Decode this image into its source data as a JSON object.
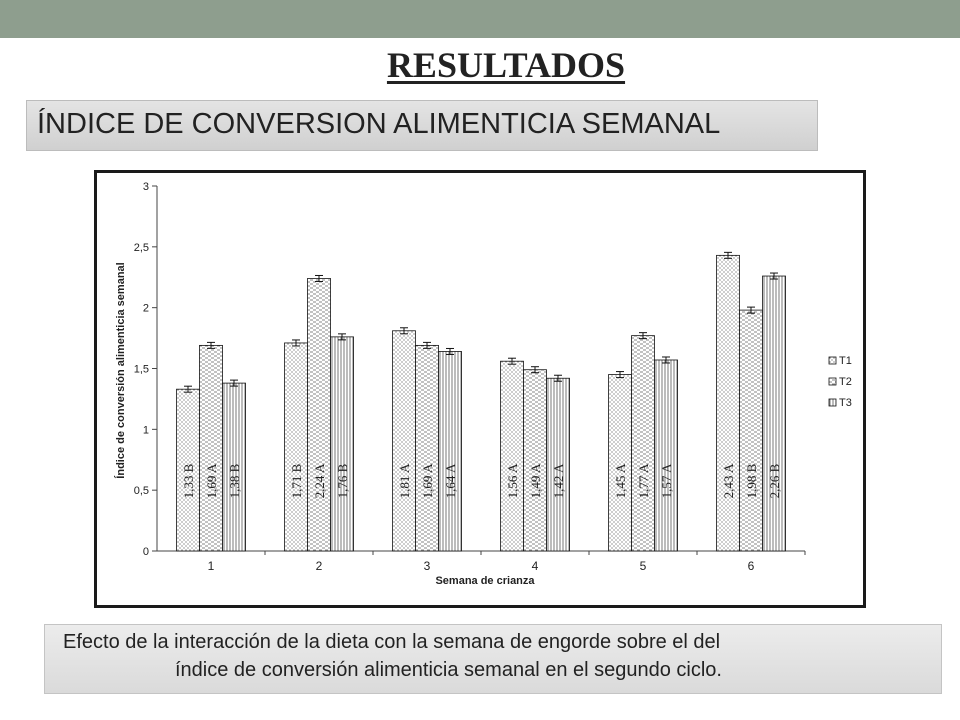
{
  "slide": {
    "title": "RESULTADOS",
    "subtitle": "ÍNDICE DE CONVERSION ALIMENTICIA SEMANAL",
    "caption_line1": "Efecto de la interacción de la dieta con la semana de engorde sobre el del",
    "caption_line2": "índice de conversión alimenticia semanal en el segundo ciclo."
  },
  "colors": {
    "top_band": "#8e9e8e",
    "frame": "#1a1a1a",
    "bar_stroke": "#111111"
  },
  "chart_data": {
    "type": "bar",
    "title": "",
    "xlabel": "Semana de crianza",
    "ylabel": "Índice de conversión alimenticia semanal",
    "ylim": [
      0,
      3
    ],
    "y_ticks": [
      "0",
      "0,5",
      "1",
      "1,5",
      "2",
      "2,5",
      "3"
    ],
    "y_tick_values": [
      0,
      0.5,
      1,
      1.5,
      2,
      2.5,
      3
    ],
    "categories": [
      "1",
      "2",
      "3",
      "4",
      "5",
      "6"
    ],
    "error_bars": true,
    "grid": false,
    "legend_position": "right",
    "series": [
      {
        "name": "T1",
        "pattern": "dots",
        "values": [
          1.33,
          1.71,
          1.81,
          1.56,
          1.45,
          2.43
        ],
        "labels": [
          "1,33 B",
          "1,71 B",
          "1,81 A",
          "1,56 A",
          "1,45 A",
          "2,43 A"
        ]
      },
      {
        "name": "T2",
        "pattern": "dashes",
        "values": [
          1.69,
          2.24,
          1.69,
          1.49,
          1.77,
          1.98
        ],
        "labels": [
          "1,69 A",
          "2,24 A",
          "1,69 A",
          "1,49 A",
          "1,77 A",
          "1,98 B"
        ]
      },
      {
        "name": "T3",
        "pattern": "vertical-lines",
        "values": [
          1.38,
          1.76,
          1.64,
          1.42,
          1.57,
          2.26
        ],
        "labels": [
          "1,38 B",
          "1,76 B",
          "1,64 A",
          "1,42 A",
          "1,57 A",
          "2,26 B"
        ]
      }
    ]
  }
}
